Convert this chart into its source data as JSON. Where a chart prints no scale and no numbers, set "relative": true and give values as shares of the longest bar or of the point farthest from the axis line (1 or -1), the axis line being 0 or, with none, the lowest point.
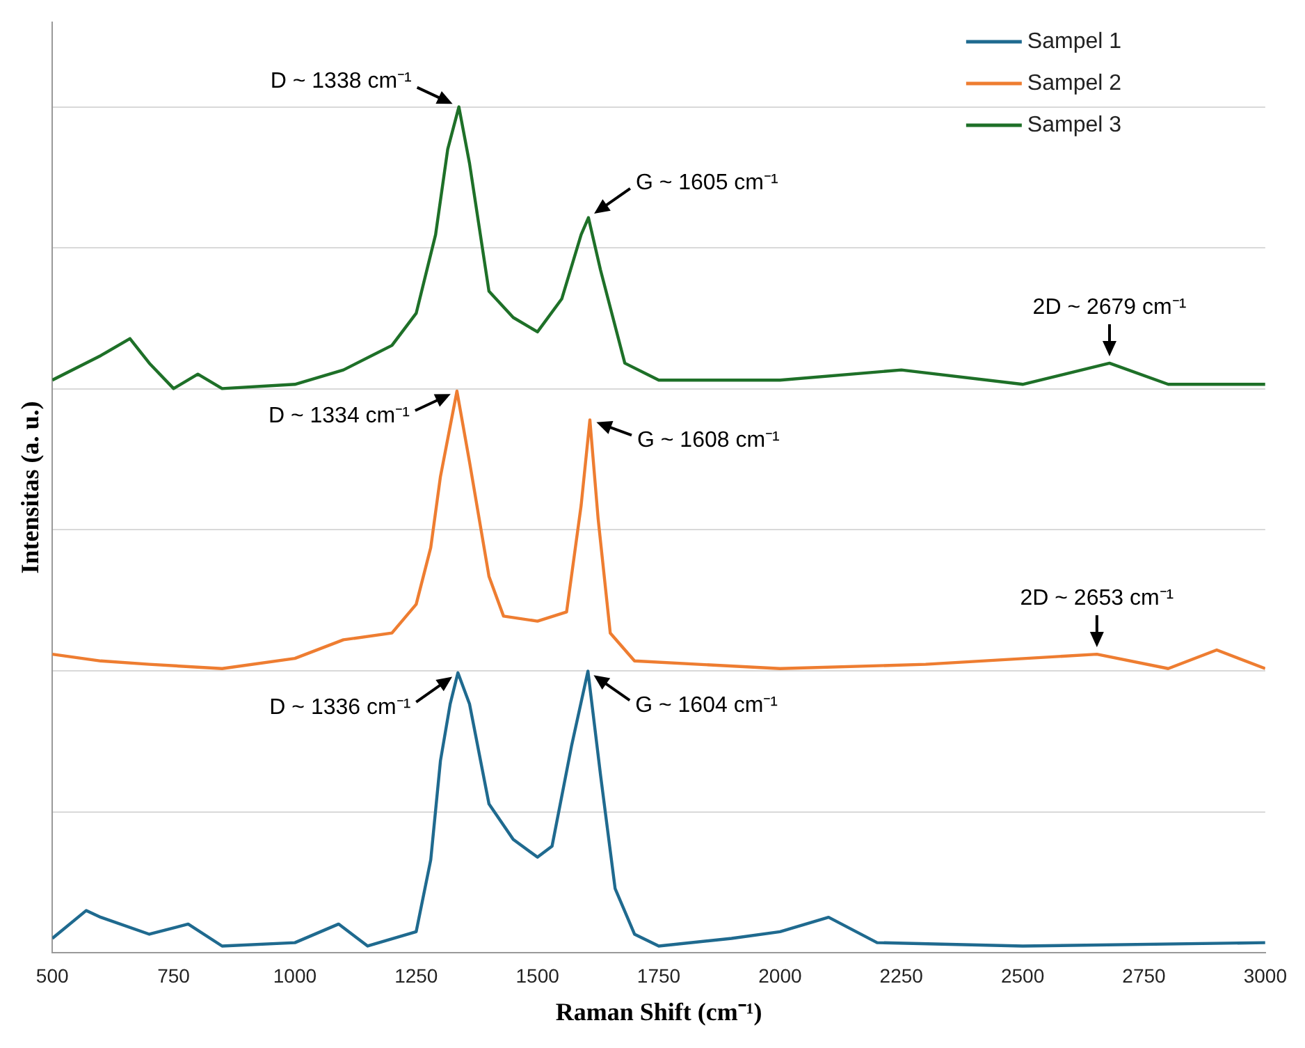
{
  "chart_data": {
    "type": "line",
    "relative": true,
    "xlabel": "Raman Shift (cm⁻¹)",
    "ylabel": "Intensitas (a. u.)",
    "xlim": [
      500,
      3000
    ],
    "xticks": [
      500,
      750,
      1000,
      1250,
      1500,
      1750,
      2000,
      2250,
      2500,
      2750,
      3000
    ],
    "grid": "y",
    "legend": "top right",
    "marker": "none",
    "line_style": "solid",
    "series": [
      {
        "name": "Sampel 1",
        "color": "#1f6a8f",
        "x": [
          500,
          570,
          600,
          700,
          780,
          850,
          1000,
          1090,
          1150,
          1250,
          1280,
          1300,
          1320,
          1336,
          1360,
          1400,
          1450,
          1500,
          1530,
          1570,
          1604,
          1630,
          1660,
          1700,
          1750,
          1900,
          2000,
          2100,
          2200,
          2500,
          3000
        ],
        "values": [
          0.017,
          0.05,
          0.042,
          0.022,
          0.034,
          0.008,
          0.012,
          0.034,
          0.008,
          0.025,
          0.11,
          0.227,
          0.294,
          0.331,
          0.294,
          0.176,
          0.134,
          0.113,
          0.126,
          0.244,
          0.333,
          0.21,
          0.076,
          0.022,
          0.008,
          0.017,
          0.025,
          0.042,
          0.012,
          0.008,
          0.012
        ]
      },
      {
        "name": "Sampel 2",
        "color": "#ee7d31",
        "x": [
          500,
          600,
          700,
          850,
          1000,
          1100,
          1200,
          1250,
          1280,
          1300,
          1334,
          1360,
          1400,
          1430,
          1500,
          1560,
          1590,
          1608,
          1625,
          1650,
          1700,
          2000,
          2300,
          2653,
          2800,
          2900,
          3000
        ],
        "values": [
          0.353,
          0.345,
          0.341,
          0.336,
          0.348,
          0.37,
          0.378,
          0.412,
          0.479,
          0.563,
          0.664,
          0.58,
          0.445,
          0.398,
          0.392,
          0.403,
          0.529,
          0.63,
          0.513,
          0.378,
          0.345,
          0.336,
          0.341,
          0.353,
          0.336,
          0.358,
          0.336
        ]
      },
      {
        "name": "Sampel 3",
        "color": "#1e7028",
        "x": [
          500,
          600,
          660,
          700,
          750,
          800,
          850,
          1000,
          1100,
          1200,
          1250,
          1290,
          1315,
          1338,
          1360,
          1400,
          1450,
          1500,
          1550,
          1590,
          1605,
          1630,
          1680,
          1750,
          2000,
          2250,
          2500,
          2679,
          2800,
          3000
        ],
        "values": [
          0.677,
          0.706,
          0.726,
          0.697,
          0.667,
          0.684,
          0.667,
          0.672,
          0.689,
          0.718,
          0.756,
          0.849,
          0.95,
          1,
          0.933,
          0.782,
          0.751,
          0.734,
          0.773,
          0.849,
          0.869,
          0.807,
          0.697,
          0.677,
          0.677,
          0.689,
          0.672,
          0.697,
          0.672,
          0.672
        ]
      }
    ],
    "annotations": [
      {
        "text": "D ~ 1338 cm⁻¹",
        "x": 1338,
        "y": 1
      },
      {
        "text": "G ~ 1605 cm⁻¹",
        "x": 1605,
        "y": 0.869
      },
      {
        "text": "2D ~ 2679 cm⁻¹",
        "x": 2679,
        "y": 0.697
      },
      {
        "text": "D ~ 1334 cm⁻¹",
        "x": 1334,
        "y": 0.664
      },
      {
        "text": "G ~ 1608 cm⁻¹",
        "x": 1608,
        "y": 0.63
      },
      {
        "text": "2D ~ 2653 cm⁻¹",
        "x": 2653,
        "y": 0.353
      },
      {
        "text": "D ~ 1336 cm⁻¹",
        "x": 1336,
        "y": 0.331
      },
      {
        "text": "G ~ 1604 cm⁻¹",
        "x": 1604,
        "y": 0.333
      }
    ]
  }
}
